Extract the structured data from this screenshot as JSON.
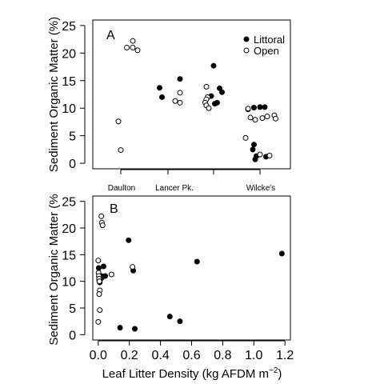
{
  "colors": {
    "littoral": "#000000",
    "open": "#ffffff",
    "stroke": "#000000"
  },
  "legend": {
    "littoral": "Littoral",
    "open": "Open",
    "placement": "top-right"
  },
  "chart_data": [
    {
      "type": "scatter",
      "panel": "A",
      "ylabel": "Sediment Organic Matter (%)",
      "ylim": [
        -1,
        26
      ],
      "yticks": [
        0,
        5,
        10,
        15,
        20,
        25
      ],
      "categories": [
        "Daulton",
        "Lancer Pk.",
        "",
        "Wilcke's"
      ],
      "category_labels": [
        "Daulton",
        "Lancer Pk.",
        "Wilcke's"
      ],
      "grid": false,
      "series": [
        {
          "name": "Littoral",
          "points": [
            {
              "site": 1,
              "x": -0.07,
              "y": 13.7
            },
            {
              "site": 1,
              "x": -0.05,
              "y": 12.0
            },
            {
              "site": 1,
              "x": 0.1,
              "y": 15.3
            },
            {
              "site": 2,
              "x": 0.0,
              "y": 17.7
            },
            {
              "site": 2,
              "x": 0.05,
              "y": 13.6
            },
            {
              "site": 2,
              "x": 0.07,
              "y": 12.9
            },
            {
              "site": 2,
              "x": -0.02,
              "y": 12.2
            },
            {
              "site": 2,
              "x": 0.03,
              "y": 11.0
            },
            {
              "site": 2,
              "x": 0.01,
              "y": 10.8
            },
            {
              "site": 3,
              "x": -0.1,
              "y": 9.8
            },
            {
              "site": 3,
              "x": -0.05,
              "y": 10.1
            },
            {
              "site": 3,
              "x": 0.0,
              "y": 10.2
            },
            {
              "site": 3,
              "x": 0.04,
              "y": 10.2
            },
            {
              "site": 3,
              "x": -0.05,
              "y": 3.4
            },
            {
              "site": 3,
              "x": -0.06,
              "y": 2.5
            },
            {
              "site": 3,
              "x": -0.03,
              "y": 1.3
            },
            {
              "site": 3,
              "x": 0.05,
              "y": 1.2
            },
            {
              "site": 3,
              "x": -0.04,
              "y": 0.7
            }
          ]
        },
        {
          "name": "Open",
          "points": [
            {
              "site": 0,
              "x": 0.1,
              "y": 22.2
            },
            {
              "site": 0,
              "x": 0.05,
              "y": 21.0
            },
            {
              "site": 0,
              "x": 0.1,
              "y": 21.0
            },
            {
              "site": 0,
              "x": 0.14,
              "y": 20.5
            },
            {
              "site": 0,
              "x": -0.02,
              "y": 7.6
            },
            {
              "site": 0,
              "x": 0.0,
              "y": 2.4
            },
            {
              "site": 1,
              "x": 0.1,
              "y": 12.8
            },
            {
              "site": 1,
              "x": 0.06,
              "y": 11.3
            },
            {
              "site": 1,
              "x": 0.1,
              "y": 11.0
            },
            {
              "site": 2,
              "x": -0.06,
              "y": 13.9
            },
            {
              "site": 2,
              "x": -0.05,
              "y": 12.0
            },
            {
              "site": 2,
              "x": -0.06,
              "y": 11.6
            },
            {
              "site": 2,
              "x": -0.07,
              "y": 11.0
            },
            {
              "site": 2,
              "x": -0.06,
              "y": 10.5
            },
            {
              "site": 2,
              "x": -0.04,
              "y": 10.0
            },
            {
              "site": 3,
              "x": -0.1,
              "y": 9.9
            },
            {
              "site": 3,
              "x": -0.08,
              "y": 8.3
            },
            {
              "site": 3,
              "x": -0.04,
              "y": 7.9
            },
            {
              "site": 3,
              "x": 0.02,
              "y": 8.2
            },
            {
              "site": 3,
              "x": 0.06,
              "y": 8.5
            },
            {
              "site": 3,
              "x": 0.12,
              "y": 8.7
            },
            {
              "site": 3,
              "x": 0.13,
              "y": 8.1
            },
            {
              "site": 3,
              "x": -0.12,
              "y": 4.6
            },
            {
              "site": 3,
              "x": 0.0,
              "y": 1.6
            },
            {
              "site": 3,
              "x": 0.08,
              "y": 1.4
            }
          ]
        }
      ]
    },
    {
      "type": "scatter",
      "panel": "B",
      "ylabel": "Sediment Organic Matter (%",
      "xlabel": "Leaf Litter Density (kg AFDM m",
      "xlabel_exp": "−2",
      "xlabel_end": ")",
      "xlim": [
        -0.035,
        1.235
      ],
      "ylim": [
        -1,
        26
      ],
      "xticks": [
        0.0,
        0.2,
        0.4,
        0.6,
        0.8,
        1.0,
        1.2
      ],
      "xtick_labels": [
        "0.0",
        "0.2",
        "0.4",
        "0.6",
        "0.8",
        "1.0",
        "1.2"
      ],
      "yticks": [
        0,
        5,
        10,
        15,
        20,
        25
      ],
      "grid": false,
      "series": [
        {
          "name": "Littoral",
          "points": [
            [
              0.003,
              12.5
            ],
            [
              0.006,
              10.2
            ],
            [
              0.01,
              9.8
            ],
            [
              0.014,
              10.4
            ],
            [
              0.018,
              11.0
            ],
            [
              0.024,
              10.7
            ],
            [
              0.03,
              10.9
            ],
            [
              0.034,
              12.8
            ],
            [
              0.045,
              11.0
            ],
            [
              0.14,
              1.3
            ],
            [
              0.195,
              17.7
            ],
            [
              0.225,
              12.0
            ],
            [
              0.235,
              1.1
            ],
            [
              0.46,
              3.4
            ],
            [
              0.525,
              2.5
            ],
            [
              0.635,
              13.7
            ],
            [
              1.18,
              15.2
            ]
          ]
        },
        {
          "name": "Open",
          "points": [
            [
              0.02,
              22.2
            ],
            [
              0.023,
              21.0
            ],
            [
              0.028,
              20.5
            ],
            [
              0.0,
              13.9
            ],
            [
              0.002,
              11.6
            ],
            [
              0.004,
              11.0
            ],
            [
              0.006,
              10.5
            ],
            [
              0.008,
              10.0
            ],
            [
              0.01,
              8.3
            ],
            [
              0.006,
              7.6
            ],
            [
              0.01,
              4.6
            ],
            [
              0.0,
              2.4
            ],
            [
              0.085,
              11.3
            ],
            [
              0.22,
              12.7
            ]
          ]
        }
      ]
    }
  ]
}
